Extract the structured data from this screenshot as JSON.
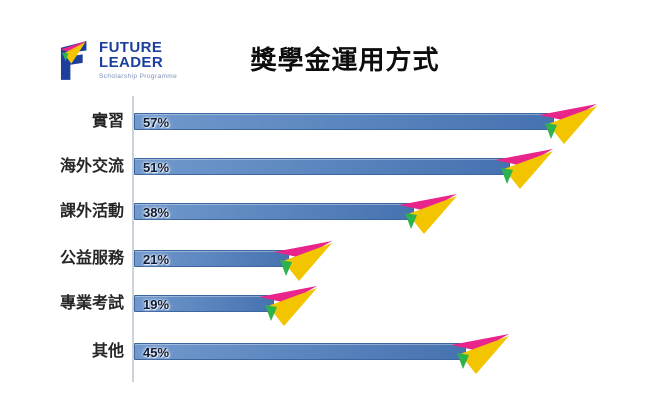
{
  "logo": {
    "name_line1": "FUTURE",
    "name_line2": "LEADER",
    "subtitle": "Scholarship Programme",
    "navy": "#1b3f9b"
  },
  "chart_data": {
    "type": "bar",
    "orientation": "horizontal",
    "title": "獎學金運用方式",
    "categories": [
      "實習",
      "海外交流",
      "課外活動",
      "公益服務",
      "專業考試",
      "其他"
    ],
    "values": [
      57,
      51,
      38,
      21,
      19,
      45
    ],
    "value_labels": [
      "57%",
      "51%",
      "38%",
      "21%",
      "19%",
      "45%"
    ],
    "unit": "percent",
    "xlim": [
      0,
      60
    ],
    "grid": false,
    "legend": false,
    "bar_color_light": "#7199cd",
    "bar_color_dark": "#4672b0",
    "plane_pink": "#e9258c",
    "plane_yellow": "#f2c500",
    "plane_green": "#2eb24c"
  }
}
